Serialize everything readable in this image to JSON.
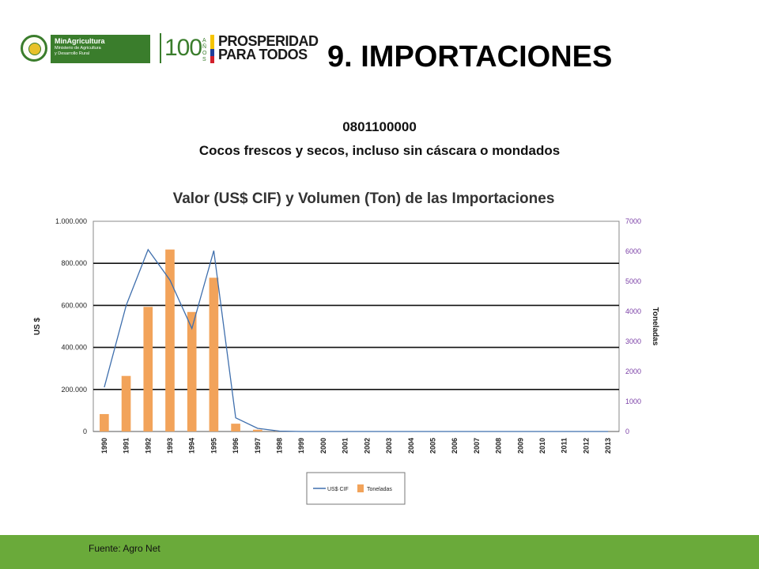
{
  "header": {
    "logo": {
      "ministry_title": "MinAgricultura",
      "ministry_line1": "Ministerio de Agricultura",
      "ministry_line2": "y Desarrollo Rural",
      "anios_number": "100",
      "anios_label": "AÑOS",
      "slogan_line1": "PROSPERIDAD",
      "slogan_line2": "PARA TODOS"
    },
    "slide_title": "9. IMPORTACIONES"
  },
  "subtitle": {
    "code": "0801100000",
    "description": "Cocos frescos y secos, incluso sin cáscara o mondados"
  },
  "colors": {
    "line_series": "#3f6fad",
    "bar_series": "#f2a35a",
    "right_axis_labels": "#7a3fa6",
    "footer_bar": "#6aaa3a",
    "logo_green": "#3a7d2c"
  },
  "chart_data": {
    "type": "bar",
    "title": "Valor (US$ CIF) y Volumen (Ton) de las Importaciones",
    "ylabel_left": "US $",
    "ylabel_right": "Toneladas",
    "ylim_left": [
      0,
      1000000
    ],
    "ylim_right": [
      0,
      7000
    ],
    "yticks_left": [
      "1.000.000",
      "800.000",
      "600.000",
      "400.000",
      "200.000",
      "0"
    ],
    "yticks_right": [
      "7000",
      "6000",
      "5000",
      "4000",
      "3000",
      "2000",
      "1000",
      "0"
    ],
    "categories": [
      "1990",
      "1991",
      "1992",
      "1993",
      "1994",
      "1995",
      "1996",
      "1997",
      "1998",
      "1999",
      "2000",
      "2001",
      "2002",
      "2003",
      "2004",
      "2005",
      "2006",
      "2007",
      "2008",
      "2009",
      "2010",
      "2011",
      "2012",
      "2013"
    ],
    "grid": true,
    "legend_position": "bottom",
    "series": [
      {
        "name": "US$ CIF",
        "kind": "line",
        "axis": "left",
        "values": [
          210000,
          600000,
          865000,
          720000,
          490000,
          860000,
          65000,
          15000,
          2000,
          0,
          0,
          0,
          0,
          0,
          0,
          0,
          0,
          0,
          0,
          0,
          0,
          0,
          0,
          0
        ]
      },
      {
        "name": "Toneladas",
        "kind": "bar",
        "axis": "right",
        "values": [
          580,
          1850,
          4150,
          6060,
          3980,
          5120,
          260,
          60,
          20,
          0,
          0,
          0,
          0,
          0,
          0,
          0,
          0,
          0,
          0,
          0,
          0,
          0,
          0,
          0
        ]
      }
    ]
  },
  "footer": {
    "source": "Fuente: Agro Net"
  }
}
